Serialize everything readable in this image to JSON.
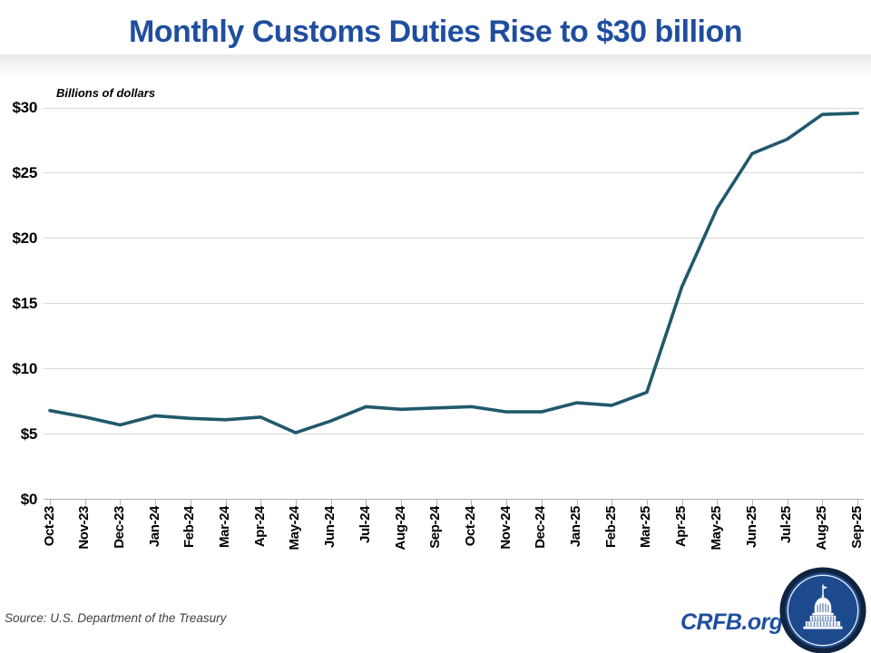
{
  "title": "Monthly Customs Duties Rise to $30 billion",
  "chart_data": {
    "type": "line",
    "title": "Monthly Customs Duties Rise to $30 billion",
    "y_axis_title": "Billions of dollars",
    "categories": [
      "Oct-23",
      "Nov-23",
      "Dec-23",
      "Jan-24",
      "Feb-24",
      "Mar-24",
      "Apr-24",
      "May-24",
      "Jun-24",
      "Jul-24",
      "Aug-24",
      "Sep-24",
      "Oct-24",
      "Nov-24",
      "Dec-24",
      "Jan-25",
      "Feb-25",
      "Mar-25",
      "Apr-25",
      "May-25",
      "Jun-25",
      "Jul-25",
      "Aug-25",
      "Sep-25"
    ],
    "series": [
      {
        "name": "Monthly customs duties (billions of dollars)",
        "values": [
          6.8,
          6.3,
          5.7,
          6.4,
          6.2,
          6.1,
          6.3,
          5.1,
          6.0,
          7.1,
          6.9,
          7.0,
          7.1,
          6.7,
          6.7,
          7.4,
          7.2,
          8.2,
          16.3,
          22.3,
          26.5,
          27.6,
          29.5,
          29.6
        ]
      }
    ],
    "ylim": [
      0,
      30
    ],
    "y_tick_values": [
      0,
      5,
      10,
      15,
      20,
      25,
      30
    ],
    "y_tick_labels": [
      "$0",
      "$5",
      "$10",
      "$15",
      "$20",
      "$25",
      "$30"
    ],
    "grid": "horizontal",
    "legend": "none"
  },
  "footer": {
    "source": "Source: U.S. Department of the Treasury",
    "brand": "CRFB.org"
  },
  "colors": {
    "title-blue": "#1f4e9f",
    "line-teal": "#20596a",
    "grid-gray": "#d9d9d9",
    "axis-gray": "#b0b0b0",
    "brand-blue": "#1d4fa0",
    "logo-fill": "#1d4a8c",
    "logo-ring": "#10233f"
  }
}
